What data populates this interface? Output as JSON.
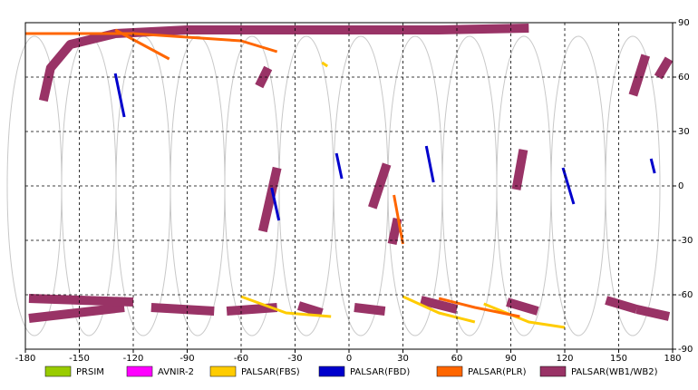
{
  "chart_data": {
    "type": "map",
    "xlim": [
      -180,
      180
    ],
    "ylim": [
      -90,
      90
    ],
    "xticks": [
      -180,
      -150,
      -120,
      -90,
      -60,
      -30,
      0,
      30,
      60,
      90,
      120,
      150,
      180
    ],
    "yticks": [
      -90,
      -60,
      -30,
      0,
      30,
      60,
      90
    ],
    "grid": true,
    "series": [
      {
        "name": "PRSIM",
        "color": "#99cc00"
      },
      {
        "name": "AVNIR-2",
        "color": "#ff00ff"
      },
      {
        "name": "PALSAR(FBS)",
        "color": "#ffcc00"
      },
      {
        "name": "PALSAR(FBD)",
        "color": "#0000cc"
      },
      {
        "name": "PALSAR(PLR)",
        "color": "#ff6600"
      },
      {
        "name": "PALSAR(WB1/WB2)",
        "color": "#993366"
      }
    ],
    "swaths": [
      {
        "series": 5,
        "lon": [
          -170,
          -166,
          -155,
          -130,
          -90,
          -40,
          0,
          50,
          100
        ],
        "lat": [
          47,
          65,
          78,
          84,
          86,
          86,
          86,
          86,
          87
        ]
      },
      {
        "series": 5,
        "lon": [
          -40,
          -48
        ],
        "lat": [
          10,
          -25
        ]
      },
      {
        "series": 5,
        "lon": [
          21,
          13
        ],
        "lat": [
          12,
          -12
        ]
      },
      {
        "series": 5,
        "lon": [
          27,
          24
        ],
        "lat": [
          -18,
          -32
        ]
      },
      {
        "series": 5,
        "lon": [
          -45,
          -50
        ],
        "lat": [
          65,
          55
        ]
      },
      {
        "series": 5,
        "lon": [
          97,
          93
        ],
        "lat": [
          20,
          -2
        ]
      },
      {
        "series": 5,
        "lon": [
          165,
          158
        ],
        "lat": [
          72,
          50
        ]
      },
      {
        "series": 5,
        "lon": [
          178,
          172
        ],
        "lat": [
          70,
          60
        ]
      },
      {
        "series": 5,
        "lon": [
          -178,
          -125
        ],
        "lat": [
          -73,
          -67
        ]
      },
      {
        "series": 5,
        "lon": [
          -178,
          -120
        ],
        "lat": [
          -62,
          -64
        ]
      },
      {
        "series": 5,
        "lon": [
          -110,
          -75
        ],
        "lat": [
          -67,
          -69
        ]
      },
      {
        "series": 5,
        "lon": [
          -68,
          -40
        ],
        "lat": [
          -69,
          -67
        ]
      },
      {
        "series": 5,
        "lon": [
          -28,
          -15
        ],
        "lat": [
          -66,
          -70
        ]
      },
      {
        "series": 5,
        "lon": [
          3,
          20
        ],
        "lat": [
          -67,
          -69
        ]
      },
      {
        "series": 5,
        "lon": [
          40,
          60
        ],
        "lat": [
          -63,
          -68
        ]
      },
      {
        "series": 5,
        "lon": [
          88,
          105
        ],
        "lat": [
          -64,
          -69
        ]
      },
      {
        "series": 5,
        "lon": [
          143,
          160
        ],
        "lat": [
          -63,
          -68
        ]
      },
      {
        "series": 5,
        "lon": [
          160,
          178
        ],
        "lat": [
          -68,
          -72
        ]
      },
      {
        "series": 3,
        "lon": [
          -130,
          -125
        ],
        "lat": [
          62,
          38
        ]
      },
      {
        "series": 3,
        "lon": [
          -43,
          -39
        ],
        "lat": [
          -1,
          -19
        ]
      },
      {
        "series": 3,
        "lon": [
          43,
          47
        ],
        "lat": [
          22,
          2
        ]
      },
      {
        "series": 3,
        "lon": [
          119,
          125
        ],
        "lat": [
          10,
          -10
        ]
      },
      {
        "series": 3,
        "lon": [
          -7,
          -4
        ],
        "lat": [
          18,
          4
        ]
      },
      {
        "series": 3,
        "lon": [
          168,
          170
        ],
        "lat": [
          15,
          7
        ]
      },
      {
        "series": 2,
        "lon": [
          -60,
          -35,
          -10
        ],
        "lat": [
          -61,
          -70,
          -72
        ]
      },
      {
        "series": 2,
        "lon": [
          30,
          50,
          70
        ],
        "lat": [
          -61,
          -70,
          -75
        ]
      },
      {
        "series": 2,
        "lon": [
          75,
          100,
          120
        ],
        "lat": [
          -65,
          -75,
          -78
        ]
      },
      {
        "series": 2,
        "lon": [
          -15,
          -12
        ],
        "lat": [
          68,
          66
        ]
      },
      {
        "series": 4,
        "lon": [
          -180,
          -120,
          -60,
          -40
        ],
        "lat": [
          84,
          84,
          80,
          74
        ]
      },
      {
        "series": 4,
        "lon": [
          -130,
          -100
        ],
        "lat": [
          86,
          70
        ]
      },
      {
        "series": 4,
        "lon": [
          50,
          70,
          95
        ],
        "lat": [
          -62,
          -67,
          -72
        ]
      },
      {
        "series": 4,
        "lon": [
          25,
          30
        ],
        "lat": [
          -5,
          -32
        ]
      }
    ]
  }
}
